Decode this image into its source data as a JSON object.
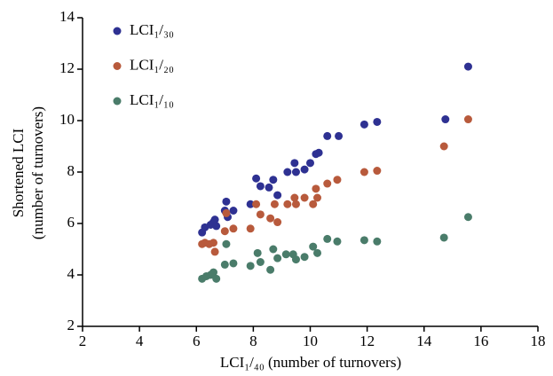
{
  "chart_data": {
    "type": "scatter",
    "xlabel": "LCI₁/₄₀ (number of turnovers)",
    "ylabel": [
      "Shortened LCI",
      "(number of turnovers)"
    ],
    "xlim": [
      2,
      18
    ],
    "xticks": [
      2,
      4,
      6,
      8,
      10,
      12,
      14,
      16,
      18
    ],
    "ylim": [
      2,
      14
    ],
    "yticks": [
      2,
      4,
      6,
      8,
      10,
      12,
      14
    ],
    "legend": "top-left",
    "series": [
      {
        "name": "LCI₁/₃₀",
        "color": "#2e3192",
        "x": [
          6.2,
          6.3,
          6.5,
          6.6,
          6.7,
          6.65,
          7.0,
          7.05,
          7.1,
          7.3,
          7.9,
          8.1,
          8.25,
          8.55,
          8.7,
          8.85,
          9.2,
          9.45,
          9.5,
          9.8,
          10.0,
          10.2,
          10.3,
          10.6,
          11.0,
          11.9,
          12.35,
          14.75,
          15.55
        ],
        "values": [
          5.65,
          5.85,
          5.95,
          6.05,
          5.9,
          6.15,
          6.5,
          6.85,
          6.25,
          6.5,
          6.75,
          7.75,
          7.45,
          7.4,
          7.7,
          7.1,
          8.0,
          8.35,
          8.0,
          8.1,
          8.35,
          8.7,
          8.75,
          9.4,
          9.4,
          9.85,
          9.95,
          10.05,
          12.1
        ]
      },
      {
        "name": "LCI₁/₂₀",
        "color": "#b85a3c",
        "x": [
          6.2,
          6.3,
          6.45,
          6.6,
          6.65,
          7.0,
          7.05,
          7.3,
          7.9,
          8.1,
          8.25,
          8.6,
          8.75,
          8.85,
          9.2,
          9.45,
          9.5,
          9.8,
          10.1,
          10.2,
          10.25,
          10.6,
          10.95,
          11.9,
          12.35,
          14.7,
          15.55
        ],
        "values": [
          5.2,
          5.25,
          5.2,
          5.25,
          4.9,
          5.7,
          6.4,
          5.8,
          5.8,
          6.75,
          6.35,
          6.2,
          6.75,
          6.05,
          6.75,
          7.0,
          6.75,
          7.0,
          6.75,
          7.35,
          7.0,
          7.55,
          7.7,
          8.0,
          8.05,
          9.0,
          10.05
        ]
      },
      {
        "name": "LCI₁/₁₀",
        "color": "#4a7c6a",
        "x": [
          6.2,
          6.35,
          6.5,
          6.6,
          6.7,
          7.0,
          7.05,
          7.3,
          7.9,
          8.15,
          8.25,
          8.6,
          8.7,
          8.85,
          9.15,
          9.4,
          9.5,
          9.8,
          10.1,
          10.25,
          10.6,
          10.95,
          11.9,
          12.35,
          14.7,
          15.55
        ],
        "values": [
          3.85,
          3.95,
          4.0,
          4.1,
          3.85,
          4.4,
          5.2,
          4.45,
          4.35,
          4.85,
          4.5,
          4.2,
          5.0,
          4.65,
          4.8,
          4.8,
          4.6,
          4.7,
          5.1,
          4.85,
          5.4,
          5.3,
          5.35,
          5.3,
          5.45,
          6.25
        ]
      }
    ]
  }
}
